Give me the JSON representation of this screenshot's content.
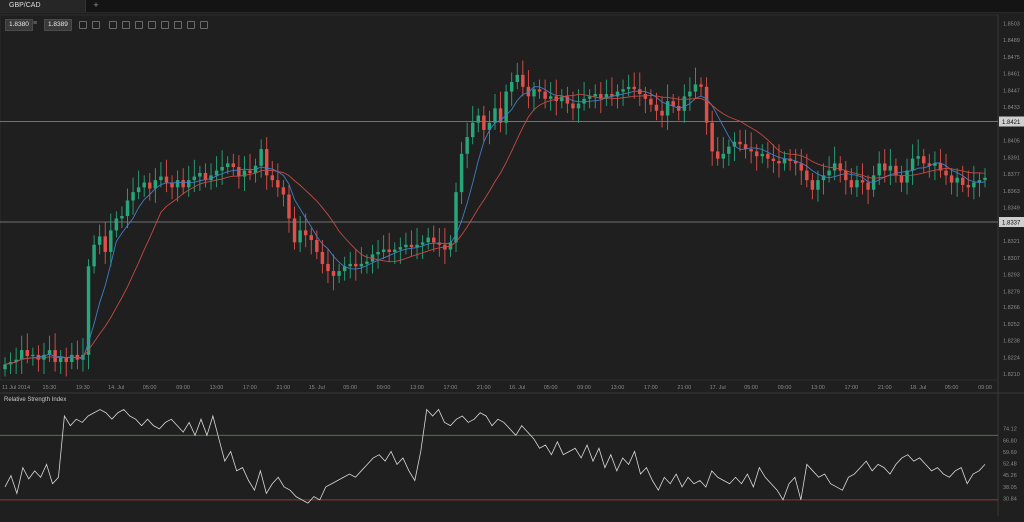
{
  "tab": {
    "title": "GBP/CAD",
    "add": "+"
  },
  "quote": {
    "bid": "1.8380",
    "sep": "≡",
    "ask": "1.8389"
  },
  "toolbar": [
    "zoom-in-icon",
    "zoom-out-icon",
    "candles-icon",
    "bars-icon",
    "line-icon",
    "crosshair-icon",
    "grid-icon",
    "chart-type-icon",
    "indicators-icon",
    "draw-icon"
  ],
  "price_axis": {
    "ticks": [
      "1.8503",
      "1.8489",
      "1.8475",
      "1.8461",
      "1.8447",
      "1.8433",
      "1.8405",
      "1.8391",
      "1.8377",
      "1.8363",
      "1.8349",
      "1.8321",
      "1.8307",
      "1.8293",
      "1.8279",
      "1.8266",
      "1.8252",
      "1.8238",
      "1.8224",
      "1.8210"
    ],
    "upper_line": "1.8421",
    "lower_line": "1.8337"
  },
  "time_axis": [
    "11 Jul 2014",
    "15:30",
    "19:30",
    "14. Jul",
    "05:00",
    "09:00",
    "13:00",
    "17:00",
    "21:00",
    "15. Jul",
    "05:00",
    "09:00",
    "13:00",
    "17:00",
    "21:00",
    "16. Jul",
    "05:00",
    "09:00",
    "13:00",
    "17:00",
    "21:00",
    "17. Jul",
    "05:00",
    "09:00",
    "13:00",
    "17:00",
    "21:00",
    "18. Jul",
    "05:00",
    "09:00"
  ],
  "indicator": {
    "title": "Relative Strength Index",
    "ticks": [
      "74.12",
      "66.80",
      "59.69",
      "52.48",
      "45.26",
      "38.05",
      "30.84"
    ],
    "overbought": 70,
    "oversold": 30,
    "values": [
      38,
      45,
      34,
      50,
      43,
      48,
      44,
      52,
      40,
      44,
      82,
      76,
      80,
      78,
      82,
      84,
      86,
      84,
      80,
      84,
      86,
      82,
      80,
      76,
      80,
      76,
      74,
      78,
      80,
      76,
      72,
      78,
      70,
      80,
      70,
      82,
      68,
      54,
      60,
      48,
      50,
      42,
      36,
      48,
      34,
      40,
      44,
      38,
      36,
      32,
      30,
      28,
      32,
      30,
      38,
      40,
      42,
      44,
      46,
      44,
      48,
      52,
      56,
      58,
      54,
      60,
      52,
      56,
      48,
      42,
      60,
      86,
      82,
      86,
      78,
      76,
      80,
      82,
      78,
      80,
      84,
      82,
      76,
      80,
      78,
      74,
      70,
      76,
      72,
      68,
      62,
      64,
      58,
      66,
      58,
      60,
      62,
      56,
      64,
      54,
      62,
      50,
      58,
      48,
      56,
      52,
      60,
      46,
      50,
      42,
      36,
      44,
      40,
      46,
      38,
      44,
      40,
      42,
      38,
      48,
      44,
      42,
      40,
      44,
      40,
      46,
      38,
      50,
      44,
      40,
      36,
      30,
      40,
      44,
      30,
      52,
      48,
      44,
      46,
      40,
      38,
      36,
      44,
      46,
      50,
      54,
      48,
      52,
      50,
      46,
      52,
      56,
      58,
      54,
      56,
      52,
      48,
      50,
      46,
      44,
      48,
      50,
      40,
      46,
      48,
      52
    ]
  },
  "chart_data": {
    "type": "candlestick",
    "symbol": "GBP/CAD",
    "ylim": [
      1.8205,
      1.851
    ],
    "x_start": "11 Jul 2014",
    "closes": [
      1.8218,
      1.822,
      1.8222,
      1.823,
      1.8225,
      1.8226,
      1.8222,
      1.8226,
      1.823,
      1.822,
      1.8224,
      1.822,
      1.8226,
      1.8222,
      1.8226,
      1.83,
      1.8318,
      1.8325,
      1.8312,
      1.833,
      1.834,
      1.8342,
      1.8355,
      1.8362,
      1.8366,
      1.837,
      1.8365,
      1.8372,
      1.8375,
      1.837,
      1.8366,
      1.8372,
      1.8366,
      1.8372,
      1.8375,
      1.8378,
      1.8372,
      1.8376,
      1.838,
      1.8383,
      1.8386,
      1.8383,
      1.8375,
      1.838,
      1.8378,
      1.8384,
      1.8398,
      1.8376,
      1.8372,
      1.8366,
      1.836,
      1.834,
      1.832,
      1.833,
      1.8326,
      1.8322,
      1.8312,
      1.8302,
      1.8296,
      1.8292,
      1.8296,
      1.83,
      1.8302,
      1.83,
      1.8302,
      1.8304,
      1.831,
      1.8312,
      1.8314,
      1.8312,
      1.8314,
      1.8316,
      1.8318,
      1.8316,
      1.8318,
      1.832,
      1.8324,
      1.832,
      1.8318,
      1.8314,
      1.832,
      1.8362,
      1.8394,
      1.8408,
      1.842,
      1.8426,
      1.8414,
      1.842,
      1.8432,
      1.842,
      1.8446,
      1.8454,
      1.846,
      1.845,
      1.8442,
      1.8448,
      1.8446,
      1.844,
      1.8442,
      1.8438,
      1.8442,
      1.8436,
      1.8432,
      1.8436,
      1.844,
      1.8442,
      1.8444,
      1.844,
      1.8444,
      1.8442,
      1.8446,
      1.8448,
      1.845,
      1.8448,
      1.8444,
      1.844,
      1.8435,
      1.843,
      1.8426,
      1.8438,
      1.8434,
      1.843,
      1.8442,
      1.8446,
      1.8452,
      1.845,
      1.842,
      1.8396,
      1.839,
      1.8394,
      1.84,
      1.8404,
      1.8402,
      1.8398,
      1.8396,
      1.8392,
      1.8394,
      1.839,
      1.8388,
      1.8386,
      1.839,
      1.8388,
      1.8386,
      1.838,
      1.8372,
      1.8364,
      1.8372,
      1.8376,
      1.838,
      1.8386,
      1.838,
      1.8372,
      1.8366,
      1.8372,
      1.837,
      1.8364,
      1.8376,
      1.8386,
      1.838,
      1.8384,
      1.8376,
      1.837,
      1.838,
      1.839,
      1.8392,
      1.8386,
      1.8384,
      1.8386,
      1.838,
      1.8376,
      1.837,
      1.8374,
      1.8368,
      1.8366,
      1.837,
      1.8372,
      1.8374
    ]
  }
}
